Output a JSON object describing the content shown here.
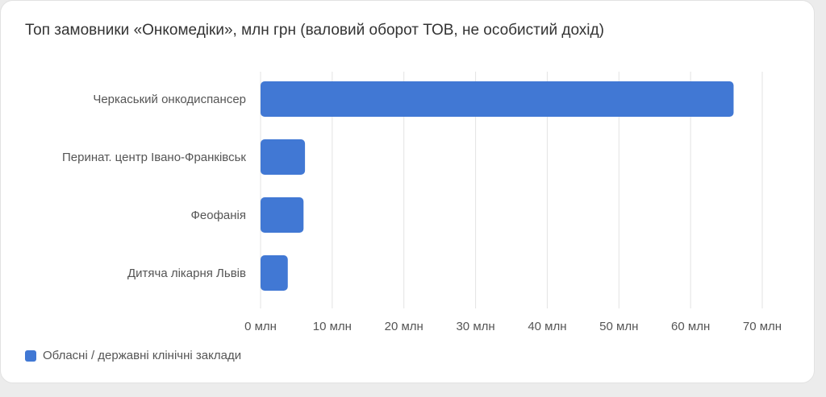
{
  "chart_data": {
    "type": "bar",
    "orientation": "horizontal",
    "title": "Топ замовники «Онкомедіки», млн грн (валовий оборот ТОВ, не особистий дохід)",
    "categories": [
      "Черкаський онкодиспансер",
      "Перинат. центр Івано-Франківськ",
      "Феофанія",
      "Дитяча лікарня Львів"
    ],
    "series": [
      {
        "name": "Обласні / державні клінічні заклади",
        "color": "#4178d4",
        "values": [
          66,
          6.2,
          6.0,
          3.8
        ]
      }
    ],
    "xlim": [
      0,
      70
    ],
    "xticks": [
      0,
      10,
      20,
      30,
      40,
      50,
      60,
      70
    ],
    "xtick_labels": [
      "0 млн",
      "10 млн",
      "20 млн",
      "30 млн",
      "40 млн",
      "50 млн",
      "60 млн",
      "70 млн"
    ],
    "grid": "vertical",
    "legend_position": "bottom-left",
    "grid_color": "#e3e3e3"
  }
}
